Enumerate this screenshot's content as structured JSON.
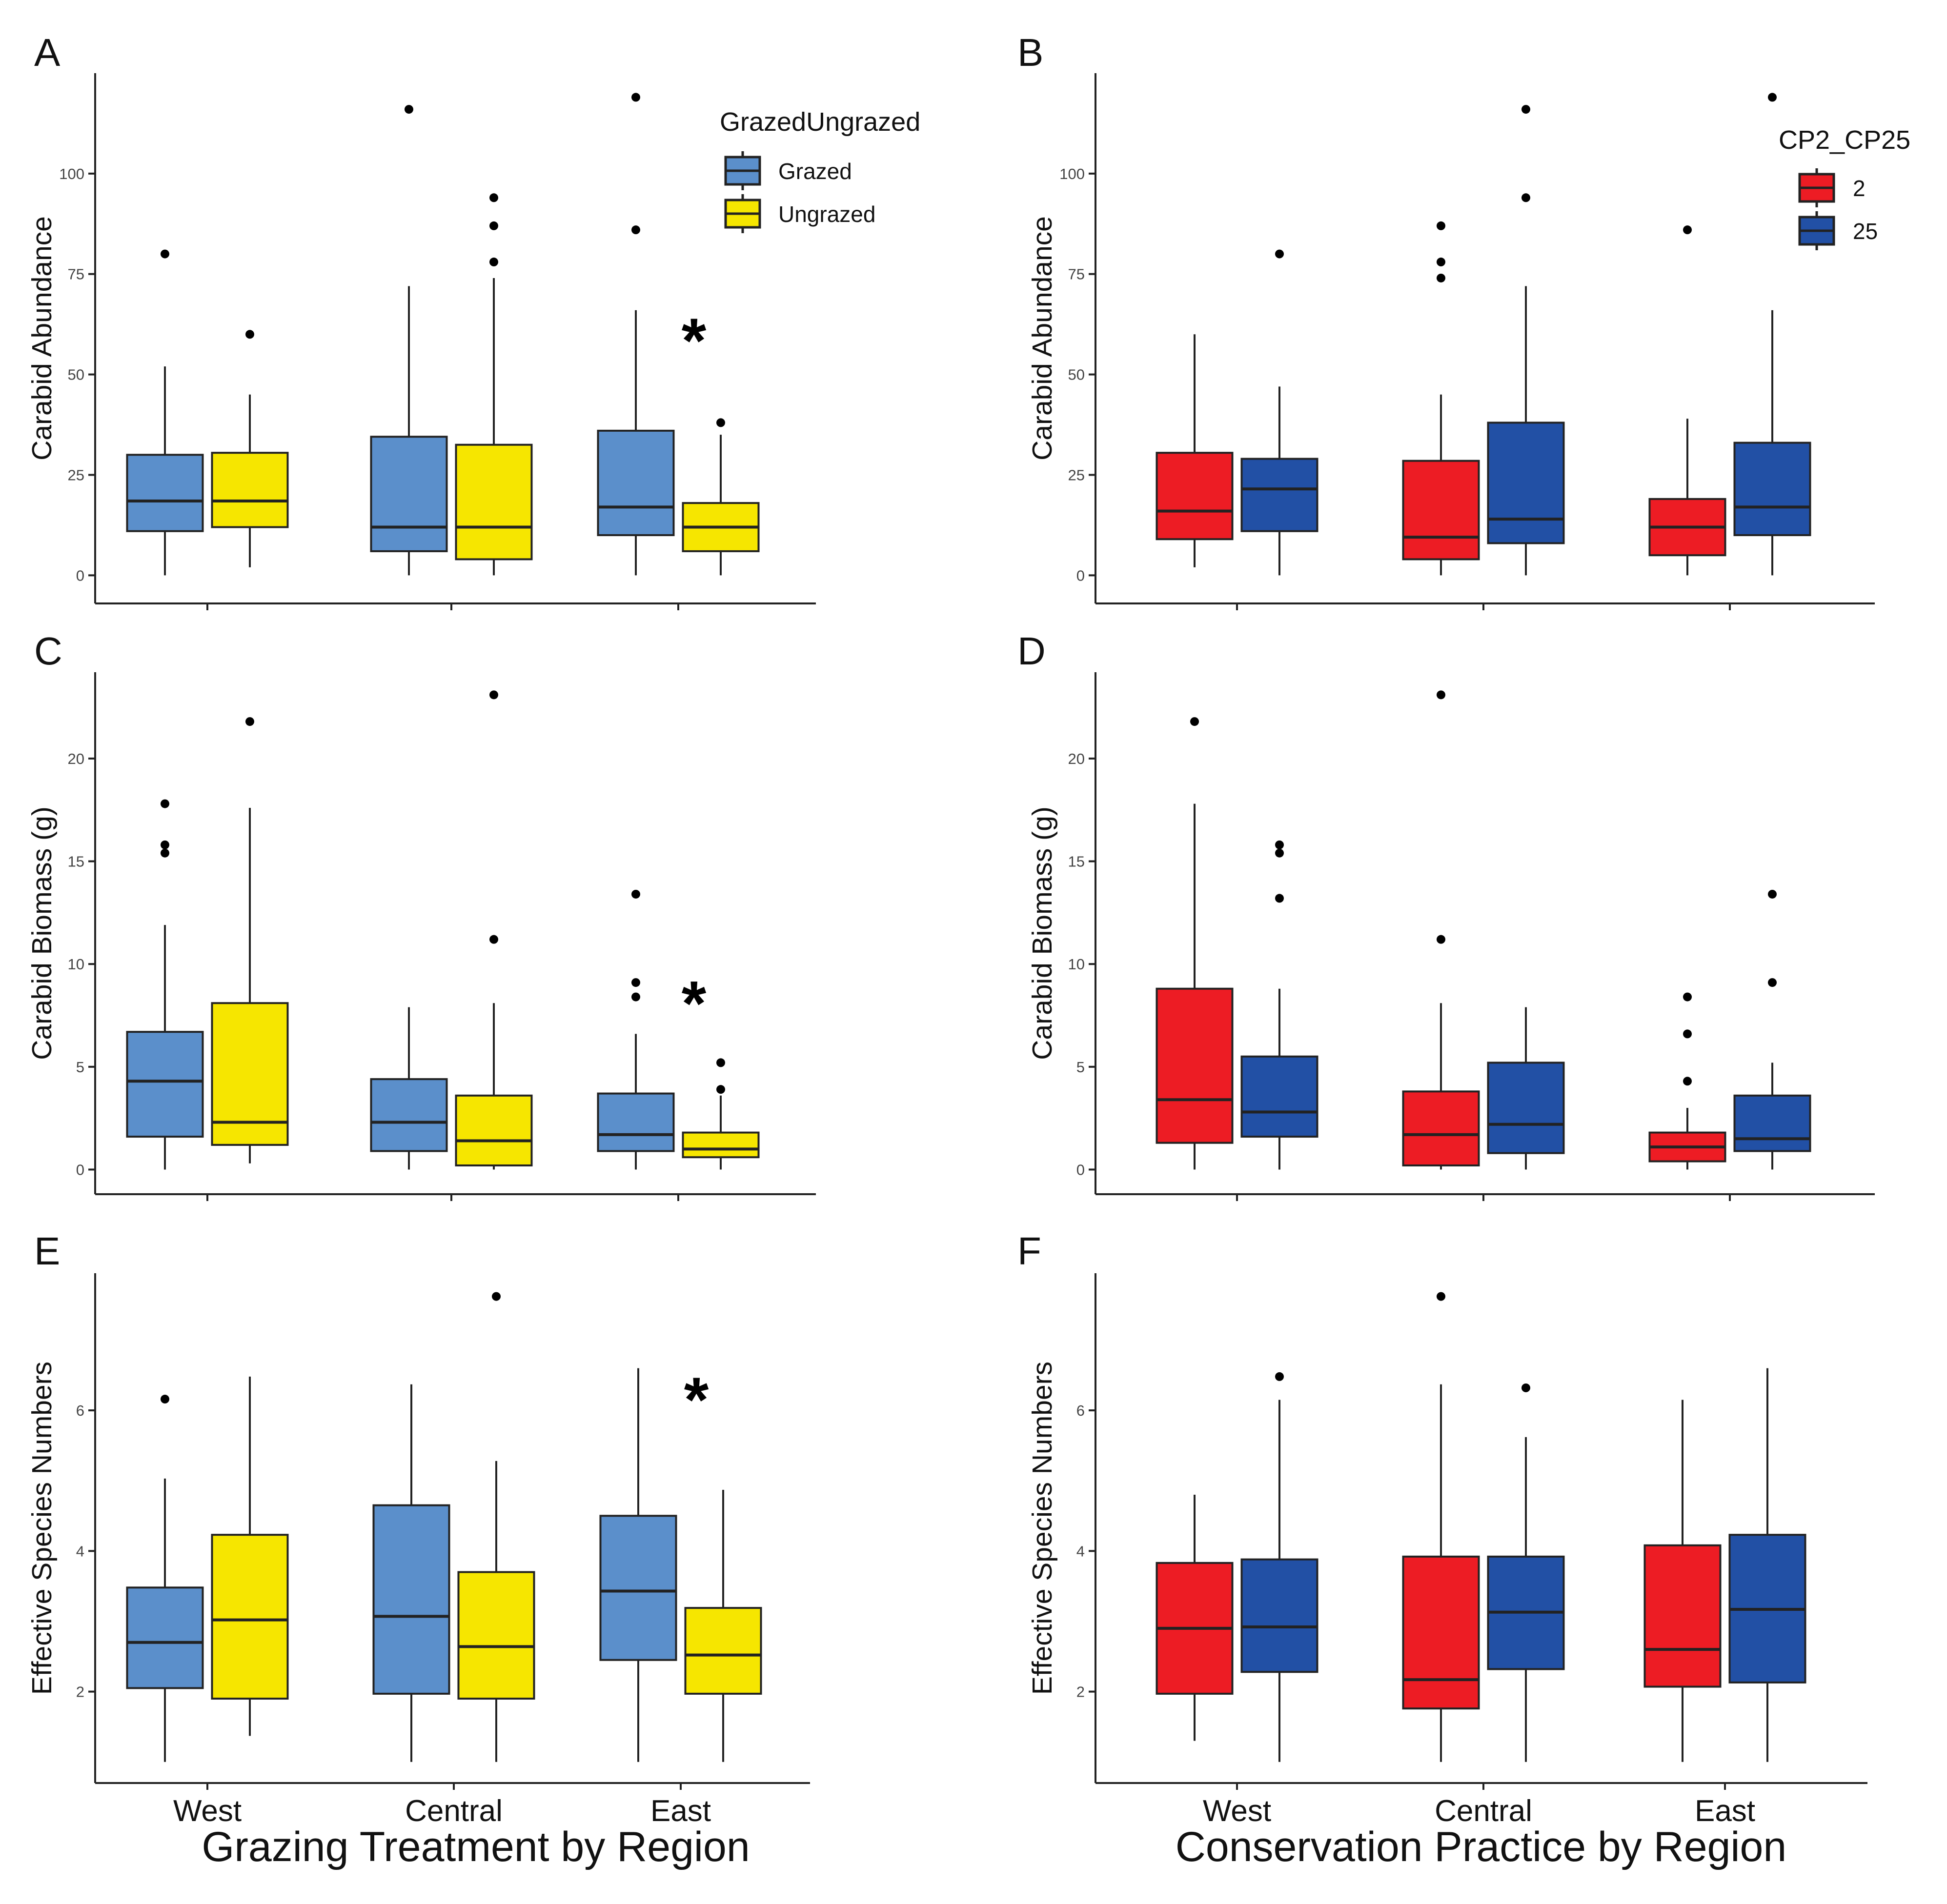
{
  "colors": {
    "grazed": "#5b8fcb",
    "ungrazed": "#f6e600",
    "cp2": "#ed1c24",
    "cp25": "#2250a5",
    "line": "#222222",
    "text": "#111111"
  },
  "x_axis": {
    "left_title": "Grazing Treatment by Region",
    "right_title": "Conservation Practice by Region",
    "regions": [
      "West",
      "Central",
      "East"
    ]
  },
  "legends": {
    "grazing": {
      "title": "GrazedUngrazed",
      "items": [
        {
          "label": "Grazed",
          "color": "#5b8fcb"
        },
        {
          "label": "Ungrazed",
          "color": "#f6e600"
        }
      ]
    },
    "conservation": {
      "title": "CP2_CP25",
      "items": [
        {
          "label": "2",
          "color": "#ed1c24"
        },
        {
          "label": "25",
          "color": "#2250a5"
        }
      ]
    }
  },
  "chart_data": [
    {
      "panel": "A",
      "type": "boxplot",
      "ylabel": "Carabid Abundance",
      "ylim": [
        -7,
        125
      ],
      "yticks": [
        0,
        25,
        50,
        75,
        100
      ],
      "legend": "grazing",
      "significant_region": "East",
      "categories": [
        "West",
        "Central",
        "East"
      ],
      "series": [
        {
          "name": "Grazed",
          "boxes": [
            {
              "lower": 0,
              "q1": 11,
              "median": 18.5,
              "q3": 30,
              "upper": 52,
              "outliers": [
                80
              ]
            },
            {
              "lower": 0,
              "q1": 6,
              "median": 12,
              "q3": 34.5,
              "upper": 72,
              "outliers": [
                116
              ]
            },
            {
              "lower": 0,
              "q1": 10,
              "median": 17,
              "q3": 36,
              "upper": 66,
              "outliers": [
                86,
                119
              ]
            }
          ]
        },
        {
          "name": "Ungrazed",
          "boxes": [
            {
              "lower": 2,
              "q1": 12,
              "median": 18.5,
              "q3": 30.5,
              "upper": 45,
              "outliers": [
                60
              ]
            },
            {
              "lower": 0,
              "q1": 4,
              "median": 12,
              "q3": 32.5,
              "upper": 74,
              "outliers": [
                78,
                87,
                94
              ]
            },
            {
              "lower": 0,
              "q1": 6,
              "median": 12,
              "q3": 18,
              "upper": 35,
              "outliers": [
                38
              ]
            }
          ]
        }
      ]
    },
    {
      "panel": "B",
      "type": "boxplot",
      "ylabel": "Carabid Abundance",
      "ylim": [
        -7,
        125
      ],
      "yticks": [
        0,
        25,
        50,
        75,
        100
      ],
      "legend": "conservation",
      "significant_region": null,
      "categories": [
        "West",
        "Central",
        "East"
      ],
      "series": [
        {
          "name": "2",
          "boxes": [
            {
              "lower": 2,
              "q1": 9,
              "median": 16,
              "q3": 30.5,
              "upper": 60,
              "outliers": []
            },
            {
              "lower": 0,
              "q1": 4,
              "median": 9.5,
              "q3": 28.5,
              "upper": 45,
              "outliers": [
                74,
                78,
                87
              ]
            },
            {
              "lower": 0,
              "q1": 5,
              "median": 12,
              "q3": 19,
              "upper": 39,
              "outliers": [
                86
              ]
            }
          ]
        },
        {
          "name": "25",
          "boxes": [
            {
              "lower": 0,
              "q1": 11,
              "median": 21.5,
              "q3": 29,
              "upper": 47,
              "outliers": [
                80
              ]
            },
            {
              "lower": 0,
              "q1": 8,
              "median": 14,
              "q3": 38,
              "upper": 72,
              "outliers": [
                94,
                116
              ]
            },
            {
              "lower": 0,
              "q1": 10,
              "median": 17,
              "q3": 33,
              "upper": 66,
              "outliers": [
                119
              ]
            }
          ]
        }
      ]
    },
    {
      "panel": "C",
      "type": "boxplot",
      "ylabel": "Carabid Biomass (g)",
      "ylim": [
        -1.2,
        24.2
      ],
      "yticks": [
        0,
        5,
        10,
        15,
        20
      ],
      "legend": null,
      "significant_region": "East",
      "categories": [
        "West",
        "Central",
        "East"
      ],
      "series": [
        {
          "name": "Grazed",
          "boxes": [
            {
              "lower": 0,
              "q1": 1.6,
              "median": 4.3,
              "q3": 6.7,
              "upper": 11.9,
              "outliers": [
                15.4,
                15.8,
                17.8
              ]
            },
            {
              "lower": 0,
              "q1": 0.9,
              "median": 2.3,
              "q3": 4.4,
              "upper": 7.9,
              "outliers": []
            },
            {
              "lower": 0,
              "q1": 0.9,
              "median": 1.7,
              "q3": 3.7,
              "upper": 6.6,
              "outliers": [
                8.4,
                9.1,
                13.4
              ]
            }
          ]
        },
        {
          "name": "Ungrazed",
          "boxes": [
            {
              "lower": 0.3,
              "q1": 1.2,
              "median": 2.3,
              "q3": 8.1,
              "upper": 17.6,
              "outliers": [
                21.8
              ]
            },
            {
              "lower": 0,
              "q1": 0.2,
              "median": 1.4,
              "q3": 3.6,
              "upper": 8.1,
              "outliers": [
                11.2,
                23.1
              ]
            },
            {
              "lower": 0,
              "q1": 0.6,
              "median": 1.0,
              "q3": 1.8,
              "upper": 3.6,
              "outliers": [
                3.9,
                5.2
              ]
            }
          ]
        }
      ]
    },
    {
      "panel": "D",
      "type": "boxplot",
      "ylabel": "Carabid Biomass (g)",
      "ylim": [
        -1.2,
        24.2
      ],
      "yticks": [
        0,
        5,
        10,
        15,
        20
      ],
      "legend": null,
      "significant_region": null,
      "categories": [
        "West",
        "Central",
        "East"
      ],
      "series": [
        {
          "name": "2",
          "boxes": [
            {
              "lower": 0,
              "q1": 1.3,
              "median": 3.4,
              "q3": 8.8,
              "upper": 17.8,
              "outliers": [
                21.8
              ]
            },
            {
              "lower": 0,
              "q1": 0.2,
              "median": 1.7,
              "q3": 3.8,
              "upper": 8.1,
              "outliers": [
                11.2,
                23.1
              ]
            },
            {
              "lower": 0,
              "q1": 0.4,
              "median": 1.1,
              "q3": 1.8,
              "upper": 3.0,
              "outliers": [
                4.3,
                6.6,
                8.4
              ]
            }
          ]
        },
        {
          "name": "25",
          "boxes": [
            {
              "lower": 0,
              "q1": 1.6,
              "median": 2.8,
              "q3": 5.5,
              "upper": 8.8,
              "outliers": [
                13.2,
                15.4,
                15.8
              ]
            },
            {
              "lower": 0,
              "q1": 0.8,
              "median": 2.2,
              "q3": 5.2,
              "upper": 7.9,
              "outliers": []
            },
            {
              "lower": 0,
              "q1": 0.9,
              "median": 1.5,
              "q3": 3.6,
              "upper": 5.2,
              "outliers": [
                9.1,
                13.4
              ]
            }
          ]
        }
      ]
    },
    {
      "panel": "E",
      "type": "boxplot",
      "ylabel": "Effective Species Numbers",
      "ylim": [
        0.7,
        7.95
      ],
      "yticks": [
        2,
        4,
        6
      ],
      "legend": null,
      "significant_region": "East",
      "categories": [
        "West",
        "Central",
        "East"
      ],
      "series": [
        {
          "name": "Grazed",
          "boxes": [
            {
              "lower": 1.0,
              "q1": 2.05,
              "median": 2.7,
              "q3": 3.48,
              "upper": 5.03,
              "outliers": [
                6.16
              ]
            },
            {
              "lower": 1.0,
              "q1": 1.97,
              "median": 3.07,
              "q3": 4.65,
              "upper": 6.37,
              "outliers": []
            },
            {
              "lower": 1.0,
              "q1": 2.45,
              "median": 3.43,
              "q3": 4.5,
              "upper": 6.6,
              "outliers": []
            }
          ]
        },
        {
          "name": "Ungrazed",
          "boxes": [
            {
              "lower": 1.37,
              "q1": 1.9,
              "median": 3.02,
              "q3": 4.23,
              "upper": 6.48,
              "outliers": []
            },
            {
              "lower": 1.0,
              "q1": 1.9,
              "median": 2.64,
              "q3": 3.7,
              "upper": 5.28,
              "outliers": [
                7.62
              ]
            },
            {
              "lower": 1.0,
              "q1": 1.97,
              "median": 2.52,
              "q3": 3.19,
              "upper": 4.87,
              "outliers": []
            }
          ]
        }
      ]
    },
    {
      "panel": "F",
      "type": "boxplot",
      "ylabel": "Effective Species Numbers",
      "ylim": [
        0.7,
        7.95
      ],
      "yticks": [
        2,
        4,
        6
      ],
      "legend": null,
      "significant_region": null,
      "categories": [
        "West",
        "Central",
        "East"
      ],
      "series": [
        {
          "name": "2",
          "boxes": [
            {
              "lower": 1.3,
              "q1": 1.97,
              "median": 2.9,
              "q3": 3.83,
              "upper": 4.8,
              "outliers": []
            },
            {
              "lower": 1.0,
              "q1": 1.76,
              "median": 2.17,
              "q3": 3.92,
              "upper": 6.37,
              "outliers": [
                7.62
              ]
            },
            {
              "lower": 1.0,
              "q1": 2.07,
              "median": 2.6,
              "q3": 4.08,
              "upper": 6.15,
              "outliers": []
            }
          ]
        },
        {
          "name": "25",
          "boxes": [
            {
              "lower": 1.0,
              "q1": 2.28,
              "median": 2.92,
              "q3": 3.88,
              "upper": 6.15,
              "outliers": [
                6.48
              ]
            },
            {
              "lower": 1.0,
              "q1": 2.32,
              "median": 3.13,
              "q3": 3.92,
              "upper": 5.62,
              "outliers": [
                6.32
              ]
            },
            {
              "lower": 1.0,
              "q1": 2.13,
              "median": 3.17,
              "q3": 4.23,
              "upper": 6.6,
              "outliers": []
            }
          ]
        }
      ]
    }
  ]
}
